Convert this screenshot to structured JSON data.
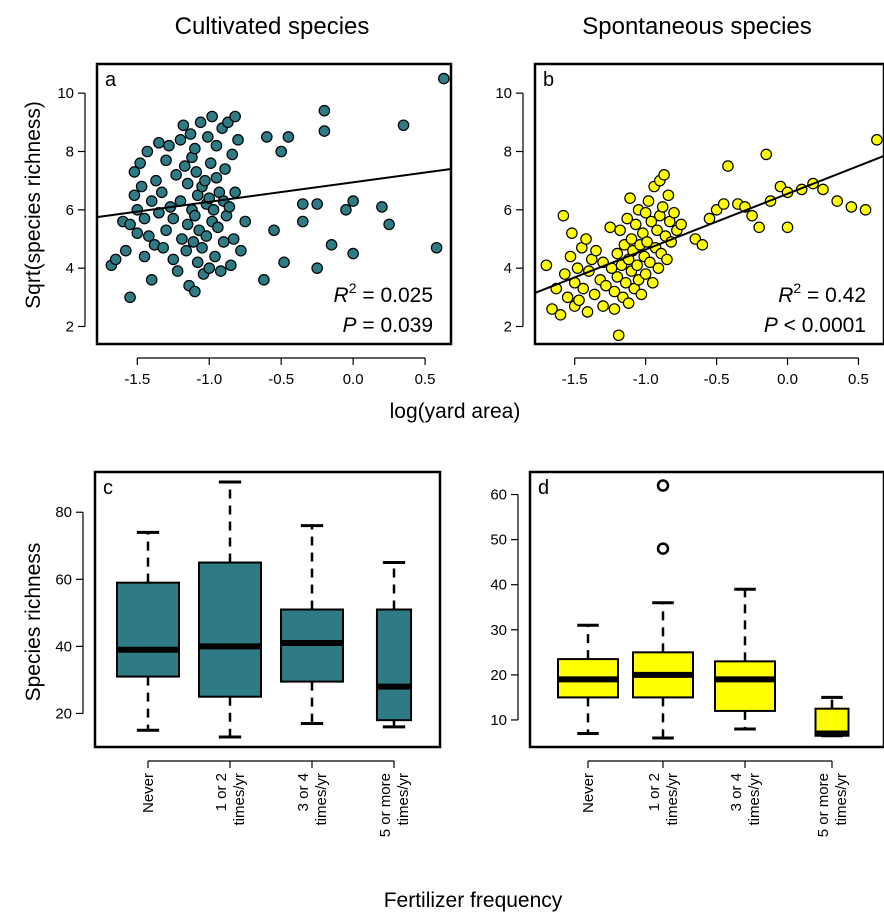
{
  "colors": {
    "cultivated": "#2e7b86",
    "spontaneous": "#ffff00",
    "outline": "#000000",
    "fit_line": "#000000"
  },
  "labels": {
    "top_y_axis": "Sqrt(species richness)",
    "top_x_axis": "log(yard area)",
    "bottom_y_axis": "Species richness",
    "bottom_x_axis": "Fertilizer frequency"
  },
  "chart_data": [
    {
      "id": "a",
      "type": "scatter",
      "title": "Cultivated species",
      "panel_letter": "a",
      "xlim": [
        -1.78,
        0.68
      ],
      "ylim": [
        1.4,
        11.0
      ],
      "xticks": [
        -1.5,
        -1.0,
        -0.5,
        0.0,
        0.5
      ],
      "xtick_labels": [
        "-1.5",
        "-1.0",
        "-0.5",
        "0.0",
        "0.5"
      ],
      "yticks": [
        2,
        4,
        6,
        8,
        10
      ],
      "ytick_labels": [
        "2",
        "4",
        "6",
        "8",
        "10"
      ],
      "fit_line": {
        "x": [
          -1.78,
          0.68
        ],
        "y": [
          5.75,
          7.4
        ]
      },
      "stats": {
        "r2_symbol": "R",
        "r2_value": " = 0.025",
        "p_symbol": "P",
        "p_value": " = 0.039"
      },
      "points": [
        [
          -1.68,
          4.1
        ],
        [
          -1.65,
          4.3
        ],
        [
          -1.6,
          5.6
        ],
        [
          -1.58,
          4.6
        ],
        [
          -1.55,
          3.0
        ],
        [
          -1.55,
          5.5
        ],
        [
          -1.52,
          6.5
        ],
        [
          -1.52,
          7.3
        ],
        [
          -1.5,
          6.0
        ],
        [
          -1.5,
          5.2
        ],
        [
          -1.48,
          7.6
        ],
        [
          -1.47,
          6.8
        ],
        [
          -1.45,
          5.7
        ],
        [
          -1.45,
          4.4
        ],
        [
          -1.43,
          8.0
        ],
        [
          -1.42,
          5.1
        ],
        [
          -1.4,
          3.6
        ],
        [
          -1.4,
          6.3
        ],
        [
          -1.38,
          4.8
        ],
        [
          -1.37,
          7.0
        ],
        [
          -1.35,
          8.3
        ],
        [
          -1.35,
          5.9
        ],
        [
          -1.33,
          6.6
        ],
        [
          -1.32,
          4.7
        ],
        [
          -1.3,
          5.3
        ],
        [
          -1.3,
          7.7
        ],
        [
          -1.28,
          8.2
        ],
        [
          -1.27,
          6.1
        ],
        [
          -1.25,
          4.3
        ],
        [
          -1.25,
          5.7
        ],
        [
          -1.23,
          7.2
        ],
        [
          -1.22,
          3.9
        ],
        [
          -1.2,
          8.4
        ],
        [
          -1.2,
          6.3
        ],
        [
          -1.19,
          5.0
        ],
        [
          -1.18,
          8.9
        ],
        [
          -1.17,
          7.5
        ],
        [
          -1.16,
          4.6
        ],
        [
          -1.15,
          6.9
        ],
        [
          -1.15,
          5.5
        ],
        [
          -1.14,
          3.4
        ],
        [
          -1.13,
          8.6
        ],
        [
          -1.12,
          7.8
        ],
        [
          -1.12,
          6.0
        ],
        [
          -1.11,
          4.9
        ],
        [
          -1.1,
          3.2
        ],
        [
          -1.1,
          5.8
        ],
        [
          -1.1,
          8.1
        ],
        [
          -1.09,
          7.3
        ],
        [
          -1.08,
          6.5
        ],
        [
          -1.08,
          4.2
        ],
        [
          -1.07,
          5.3
        ],
        [
          -1.06,
          9.0
        ],
        [
          -1.05,
          6.8
        ],
        [
          -1.05,
          4.7
        ],
        [
          -1.04,
          3.8
        ],
        [
          -1.03,
          7.0
        ],
        [
          -1.02,
          6.2
        ],
        [
          -1.02,
          5.1
        ],
        [
          -1.01,
          8.5
        ],
        [
          -1.0,
          6.4
        ],
        [
          -1.0,
          4.0
        ],
        [
          -0.99,
          7.6
        ],
        [
          -0.98,
          5.6
        ],
        [
          -0.98,
          9.2
        ],
        [
          -0.97,
          6.0
        ],
        [
          -0.96,
          4.4
        ],
        [
          -0.95,
          8.2
        ],
        [
          -0.95,
          7.1
        ],
        [
          -0.94,
          5.4
        ],
        [
          -0.93,
          6.6
        ],
        [
          -0.92,
          3.9
        ],
        [
          -0.91,
          8.8
        ],
        [
          -0.9,
          6.3
        ],
        [
          -0.9,
          4.9
        ],
        [
          -0.89,
          7.4
        ],
        [
          -0.88,
          5.8
        ],
        [
          -0.87,
          9.0
        ],
        [
          -0.86,
          6.1
        ],
        [
          -0.85,
          4.1
        ],
        [
          -0.84,
          7.9
        ],
        [
          -0.83,
          5.0
        ],
        [
          -0.82,
          9.2
        ],
        [
          -0.82,
          6.6
        ],
        [
          -0.8,
          8.4
        ],
        [
          -0.78,
          4.6
        ],
        [
          -0.75,
          5.6
        ],
        [
          -0.62,
          3.6
        ],
        [
          -0.6,
          8.5
        ],
        [
          -0.55,
          5.3
        ],
        [
          -0.5,
          8.0
        ],
        [
          -0.48,
          4.2
        ],
        [
          -0.45,
          8.5
        ],
        [
          -0.35,
          6.2
        ],
        [
          -0.35,
          5.6
        ],
        [
          -0.25,
          6.2
        ],
        [
          -0.25,
          4.0
        ],
        [
          -0.2,
          9.4
        ],
        [
          -0.2,
          8.7
        ],
        [
          -0.15,
          4.8
        ],
        [
          -0.05,
          6.0
        ],
        [
          0.0,
          6.3
        ],
        [
          0.0,
          4.5
        ],
        [
          0.2,
          6.1
        ],
        [
          0.25,
          5.5
        ],
        [
          0.35,
          8.9
        ],
        [
          0.58,
          4.7
        ],
        [
          0.63,
          10.5
        ]
      ]
    },
    {
      "id": "b",
      "type": "scatter",
      "title": "Spontaneous species",
      "panel_letter": "b",
      "xlim": [
        -1.78,
        0.68
      ],
      "ylim": [
        1.4,
        11.0
      ],
      "xticks": [
        -1.5,
        -1.0,
        -0.5,
        0.0,
        0.5
      ],
      "xtick_labels": [
        "-1.5",
        "-1.0",
        "-0.5",
        "0.0",
        "0.5"
      ],
      "yticks": [
        2,
        4,
        6,
        8,
        10
      ],
      "ytick_labels": [
        "2",
        "4",
        "6",
        "8",
        "10"
      ],
      "fit_line": {
        "x": [
          -1.78,
          0.68
        ],
        "y": [
          3.15,
          7.85
        ]
      },
      "stats": {
        "r2_symbol": "R",
        "r2_value": " = 0.42",
        "p_symbol": "P",
        "p_value": " < 0.0001"
      },
      "points": [
        [
          -1.7,
          4.1
        ],
        [
          -1.66,
          2.6
        ],
        [
          -1.63,
          3.3
        ],
        [
          -1.6,
          2.4
        ],
        [
          -1.58,
          5.8
        ],
        [
          -1.57,
          3.8
        ],
        [
          -1.55,
          3.0
        ],
        [
          -1.53,
          4.4
        ],
        [
          -1.52,
          5.2
        ],
        [
          -1.5,
          2.7
        ],
        [
          -1.5,
          3.5
        ],
        [
          -1.48,
          4.0
        ],
        [
          -1.47,
          2.9
        ],
        [
          -1.45,
          4.7
        ],
        [
          -1.44,
          3.3
        ],
        [
          -1.42,
          5.0
        ],
        [
          -1.41,
          2.5
        ],
        [
          -1.4,
          3.9
        ],
        [
          -1.38,
          4.3
        ],
        [
          -1.36,
          3.1
        ],
        [
          -1.35,
          4.6
        ],
        [
          -1.32,
          3.6
        ],
        [
          -1.3,
          2.7
        ],
        [
          -1.3,
          4.2
        ],
        [
          -1.28,
          3.4
        ],
        [
          -1.25,
          5.4
        ],
        [
          -1.24,
          4.0
        ],
        [
          -1.22,
          3.2
        ],
        [
          -1.22,
          2.6
        ],
        [
          -1.2,
          4.5
        ],
        [
          -1.2,
          3.7
        ],
        [
          -1.19,
          1.7
        ],
        [
          -1.18,
          5.3
        ],
        [
          -1.17,
          4.1
        ],
        [
          -1.16,
          3.0
        ],
        [
          -1.15,
          4.8
        ],
        [
          -1.14,
          3.5
        ],
        [
          -1.13,
          5.7
        ],
        [
          -1.12,
          4.3
        ],
        [
          -1.12,
          2.8
        ],
        [
          -1.11,
          6.4
        ],
        [
          -1.1,
          3.9
        ],
        [
          -1.1,
          5.0
        ],
        [
          -1.09,
          4.6
        ],
        [
          -1.08,
          3.3
        ],
        [
          -1.07,
          5.5
        ],
        [
          -1.06,
          4.1
        ],
        [
          -1.05,
          3.6
        ],
        [
          -1.05,
          6.0
        ],
        [
          -1.04,
          4.8
        ],
        [
          -1.03,
          3.1
        ],
        [
          -1.02,
          5.2
        ],
        [
          -1.01,
          4.4
        ],
        [
          -1.0,
          3.8
        ],
        [
          -1.0,
          5.9
        ],
        [
          -0.99,
          4.9
        ],
        [
          -0.98,
          6.3
        ],
        [
          -0.97,
          4.2
        ],
        [
          -0.96,
          5.6
        ],
        [
          -0.95,
          3.5
        ],
        [
          -0.94,
          6.8
        ],
        [
          -0.93,
          4.7
        ],
        [
          -0.92,
          5.3
        ],
        [
          -0.91,
          4.0
        ],
        [
          -0.9,
          7.0
        ],
        [
          -0.9,
          5.8
        ],
        [
          -0.89,
          4.5
        ],
        [
          -0.88,
          6.1
        ],
        [
          -0.87,
          7.2
        ],
        [
          -0.86,
          5.1
        ],
        [
          -0.85,
          4.3
        ],
        [
          -0.84,
          6.5
        ],
        [
          -0.83,
          5.6
        ],
        [
          -0.82,
          4.9
        ],
        [
          -0.8,
          5.9
        ],
        [
          -0.78,
          5.3
        ],
        [
          -0.75,
          5.5
        ],
        [
          -0.65,
          5.0
        ],
        [
          -0.6,
          4.8
        ],
        [
          -0.55,
          5.7
        ],
        [
          -0.5,
          6.0
        ],
        [
          -0.45,
          6.2
        ],
        [
          -0.42,
          7.5
        ],
        [
          -0.35,
          6.2
        ],
        [
          -0.3,
          6.1
        ],
        [
          -0.25,
          5.8
        ],
        [
          -0.2,
          5.4
        ],
        [
          -0.15,
          7.9
        ],
        [
          -0.12,
          6.3
        ],
        [
          -0.05,
          6.8
        ],
        [
          0.0,
          6.6
        ],
        [
          0.0,
          5.4
        ],
        [
          0.1,
          6.7
        ],
        [
          0.18,
          6.9
        ],
        [
          0.25,
          6.7
        ],
        [
          0.35,
          6.3
        ],
        [
          0.45,
          6.1
        ],
        [
          0.55,
          6.0
        ],
        [
          0.63,
          8.4
        ]
      ]
    },
    {
      "id": "c",
      "type": "box",
      "panel_letter": "c",
      "ylim": [
        10,
        92
      ],
      "yticks": [
        20,
        40,
        60,
        80
      ],
      "ytick_labels": [
        "20",
        "40",
        "60",
        "80"
      ],
      "categories": [
        {
          "line1": "Never",
          "line2": ""
        },
        {
          "line1": "1 or 2",
          "line2": "times/yr"
        },
        {
          "line1": "3 or 4",
          "line2": "times/yr"
        },
        {
          "line1": "5 or more",
          "line2": "times/yr"
        }
      ],
      "boxes": [
        {
          "whisker_low": 15,
          "q1": 31,
          "median": 39,
          "q3": 59,
          "whisker_high": 74,
          "outliers": []
        },
        {
          "whisker_low": 13,
          "q1": 25,
          "median": 40,
          "q3": 65,
          "whisker_high": 89,
          "outliers": []
        },
        {
          "whisker_low": 17,
          "q1": 29.5,
          "median": 41,
          "q3": 51,
          "whisker_high": 76,
          "outliers": []
        },
        {
          "whisker_low": 16,
          "q1": 18,
          "median": 28,
          "q3": 51,
          "whisker_high": 65,
          "outliers": []
        }
      ]
    },
    {
      "id": "d",
      "type": "box",
      "panel_letter": "d",
      "ylim": [
        4,
        65
      ],
      "yticks": [
        10,
        20,
        30,
        40,
        50,
        60
      ],
      "ytick_labels": [
        "10",
        "20",
        "30",
        "40",
        "50",
        "60"
      ],
      "categories": [
        {
          "line1": "Never",
          "line2": ""
        },
        {
          "line1": "1 or 2",
          "line2": "times/yr"
        },
        {
          "line1": "3 or 4",
          "line2": "times/yr"
        },
        {
          "line1": "5 or more",
          "line2": "times/yr"
        }
      ],
      "boxes": [
        {
          "whisker_low": 7,
          "q1": 15,
          "median": 19,
          "q3": 23.5,
          "whisker_high": 31,
          "outliers": []
        },
        {
          "whisker_low": 6,
          "q1": 15,
          "median": 20,
          "q3": 25,
          "whisker_high": 36,
          "outliers": [
            48,
            62
          ]
        },
        {
          "whisker_low": 8,
          "q1": 12,
          "median": 19,
          "q3": 23,
          "whisker_high": 39,
          "outliers": []
        },
        {
          "whisker_low": 6.5,
          "q1": 6.5,
          "median": 7,
          "q3": 12.5,
          "whisker_high": 15,
          "outliers": []
        }
      ]
    }
  ]
}
